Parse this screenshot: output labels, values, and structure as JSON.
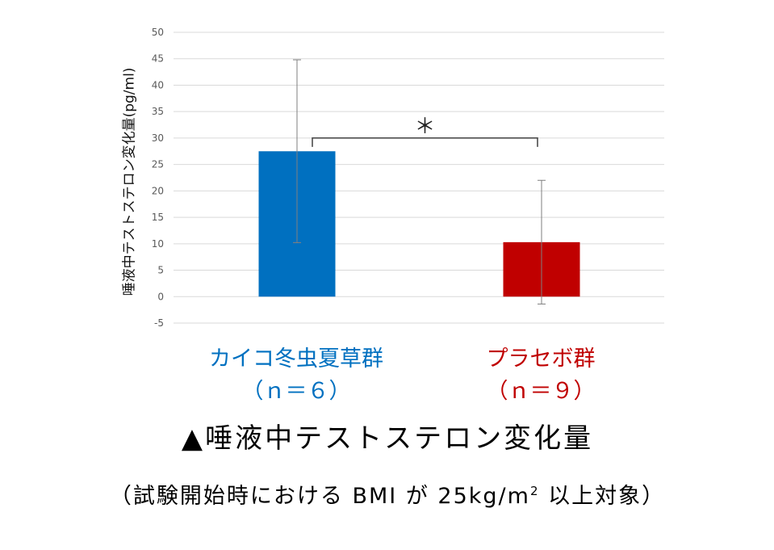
{
  "chart_data": {
    "type": "bar",
    "categories": [
      "カイコ冬虫夏草群",
      "プラセボ群"
    ],
    "category_sub": [
      "（ｎ＝６）",
      "（ｎ＝９）"
    ],
    "values": [
      27.5,
      10.3
    ],
    "error": [
      17.3,
      11.7
    ],
    "colors": [
      "#0070C0",
      "#C00000"
    ],
    "ylabel": "唾液中テストステロン変化量(pg/ml)",
    "ylim": [
      -5,
      50
    ],
    "yticks": [
      -5,
      0,
      5,
      10,
      15,
      20,
      25,
      30,
      35,
      40,
      45,
      50
    ],
    "grid": true,
    "significance": "＊"
  },
  "caption": "▲唾液中テストステロン変化量",
  "note": {
    "before": "（試験開始時における BMI が 25kg/m",
    "sup": "2",
    "after": " 以上対象）"
  }
}
